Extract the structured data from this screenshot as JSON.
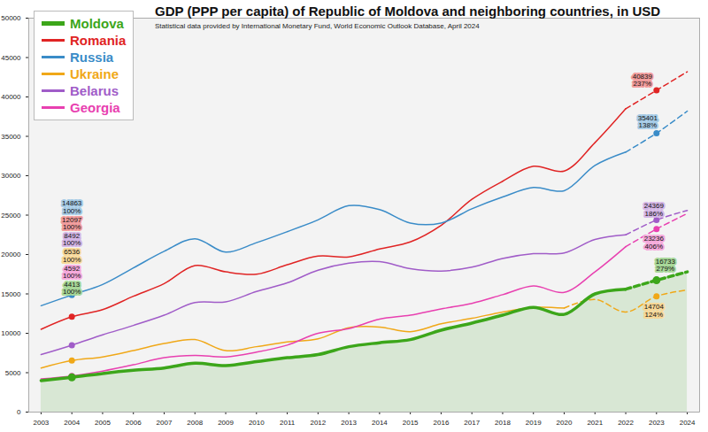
{
  "chart_data": {
    "type": "line",
    "title": "GDP (PPP per capita) of Republic of Moldova and neighboring countries, in USD",
    "subtitle": "Statistical data provided by International Monetary Fund, World Economic Outlook Database, April 2024",
    "x": [
      2003,
      2004,
      2005,
      2006,
      2007,
      2008,
      2009,
      2010,
      2011,
      2012,
      2013,
      2014,
      2015,
      2016,
      2017,
      2018,
      2019,
      2020,
      2021,
      2022,
      2023,
      2024
    ],
    "series": [
      {
        "name": "Moldova",
        "color": "#3ca61a",
        "line_style": "solid",
        "values": [
          4000,
          4413,
          4900,
          5300,
          5600,
          6200,
          5900,
          6400,
          6900,
          7300,
          8300,
          8800,
          9200,
          10400,
          11300,
          12300,
          13300,
          12400,
          15000,
          15600,
          null,
          null
        ]
      },
      {
        "name": "Romania",
        "color": "#e02424",
        "line_style": "solid",
        "values": [
          10500,
          12097,
          13000,
          14700,
          16300,
          18600,
          17800,
          17500,
          18700,
          19800,
          19700,
          20700,
          21600,
          23700,
          27000,
          29300,
          31200,
          30600,
          34200,
          38500,
          null,
          null
        ]
      },
      {
        "name": "Russia",
        "color": "#3a8cc8",
        "line_style": "solid",
        "values": [
          13500,
          14863,
          16200,
          18300,
          20400,
          22000,
          20300,
          21500,
          22900,
          24400,
          26200,
          25700,
          24000,
          24000,
          25800,
          27300,
          28500,
          28100,
          31300,
          33000,
          null,
          null
        ]
      },
      {
        "name": "Ukraine",
        "color": "#f0a818",
        "line_style": "solid",
        "values": [
          5600,
          6536,
          7000,
          7800,
          8700,
          9200,
          7800,
          8300,
          8900,
          9300,
          10700,
          10800,
          10200,
          11200,
          11900,
          12700,
          13300,
          13200,
          null,
          null,
          null,
          null
        ]
      },
      {
        "name": "Belarus",
        "color": "#a05cc8",
        "line_style": "solid",
        "values": [
          7300,
          8492,
          9800,
          11000,
          12300,
          13900,
          14000,
          15300,
          16400,
          18000,
          18900,
          19100,
          18200,
          17900,
          18400,
          19500,
          20100,
          20200,
          21900,
          22500,
          null,
          null
        ]
      },
      {
        "name": "Georgia",
        "color": "#e840b0",
        "line_style": "solid",
        "values": [
          4200,
          4592,
          5200,
          6000,
          6900,
          7200,
          7000,
          7600,
          8500,
          10000,
          10600,
          11800,
          12300,
          13100,
          13800,
          14900,
          16000,
          15200,
          17800,
          21000,
          null,
          null
        ]
      },
      {
        "name": "Moldova",
        "color": "#3ca61a",
        "line_style": "dashed",
        "values": [
          null,
          null,
          null,
          null,
          null,
          null,
          null,
          null,
          null,
          null,
          null,
          null,
          null,
          null,
          null,
          null,
          null,
          null,
          null,
          15600,
          16733,
          17800
        ]
      },
      {
        "name": "Romania",
        "color": "#e02424",
        "line_style": "dashed",
        "values": [
          null,
          null,
          null,
          null,
          null,
          null,
          null,
          null,
          null,
          null,
          null,
          null,
          null,
          null,
          null,
          null,
          null,
          null,
          null,
          38500,
          40839,
          43200
        ]
      },
      {
        "name": "Russia",
        "color": "#3a8cc8",
        "line_style": "dashed",
        "values": [
          null,
          null,
          null,
          null,
          null,
          null,
          null,
          null,
          null,
          null,
          null,
          null,
          null,
          null,
          null,
          null,
          null,
          null,
          null,
          33000,
          35401,
          38200
        ]
      },
      {
        "name": "Ukraine",
        "color": "#f0a818",
        "line_style": "dashed",
        "values": [
          null,
          null,
          null,
          null,
          null,
          null,
          null,
          null,
          null,
          null,
          null,
          null,
          null,
          null,
          null,
          null,
          null,
          13200,
          14300,
          12700,
          14704,
          15500
        ]
      },
      {
        "name": "Belarus",
        "color": "#a05cc8",
        "line_style": "dashed",
        "values": [
          null,
          null,
          null,
          null,
          null,
          null,
          null,
          null,
          null,
          null,
          null,
          null,
          null,
          null,
          null,
          null,
          null,
          null,
          null,
          22500,
          24369,
          25600
        ]
      },
      {
        "name": "Georgia",
        "color": "#e840b0",
        "line_style": "dashed",
        "values": [
          null,
          null,
          null,
          null,
          null,
          null,
          null,
          null,
          null,
          null,
          null,
          null,
          null,
          null,
          null,
          null,
          null,
          null,
          null,
          21000,
          23236,
          25200
        ]
      }
    ],
    "annotations": [
      {
        "series": "Russia",
        "x": 2004,
        "y": 14863,
        "text": [
          "14863",
          "100%"
        ]
      },
      {
        "series": "Romania",
        "x": 2004,
        "y": 12097,
        "text": [
          "12097",
          "100%"
        ]
      },
      {
        "series": "Belarus",
        "x": 2004,
        "y": 8492,
        "text": [
          "8492",
          "100%"
        ]
      },
      {
        "series": "Ukraine",
        "x": 2004,
        "y": 6536,
        "text": [
          "6536",
          "100%"
        ]
      },
      {
        "series": "Georgia",
        "x": 2004,
        "y": 4592,
        "text": [
          "4592",
          "100%"
        ]
      },
      {
        "series": "Moldova",
        "x": 2004,
        "y": 4413,
        "text": [
          "4413",
          "100%"
        ]
      },
      {
        "series": "Romania",
        "x": 2023,
        "y": 40839,
        "text": [
          "40839",
          "237%"
        ]
      },
      {
        "series": "Russia",
        "x": 2023,
        "y": 35401,
        "text": [
          "35401",
          "138%"
        ]
      },
      {
        "series": "Belarus",
        "x": 2023,
        "y": 24369,
        "text": [
          "24369",
          "186%"
        ]
      },
      {
        "series": "Georgia",
        "x": 2023,
        "y": 23236,
        "text": [
          "23236",
          "406%"
        ]
      },
      {
        "series": "Moldova",
        "x": 2023,
        "y": 16733,
        "text": [
          "16733",
          "279%"
        ]
      },
      {
        "series": "Ukraine",
        "x": 2023,
        "y": 14704,
        "text": [
          "14704",
          "124%"
        ]
      }
    ],
    "xlim": [
      2002.6,
      2024.4
    ],
    "xticks": [
      2003,
      2004,
      2005,
      2006,
      2007,
      2008,
      2009,
      2010,
      2011,
      2012,
      2013,
      2014,
      2015,
      2016,
      2017,
      2018,
      2019,
      2020,
      2021,
      2022,
      2023,
      2024
    ],
    "ylim": [
      0,
      50000
    ],
    "yticks": [
      0,
      5000,
      10000,
      15000,
      20000,
      25000,
      30000,
      35000,
      40000,
      45000,
      50000
    ],
    "grid": true,
    "legend": "top-left"
  }
}
